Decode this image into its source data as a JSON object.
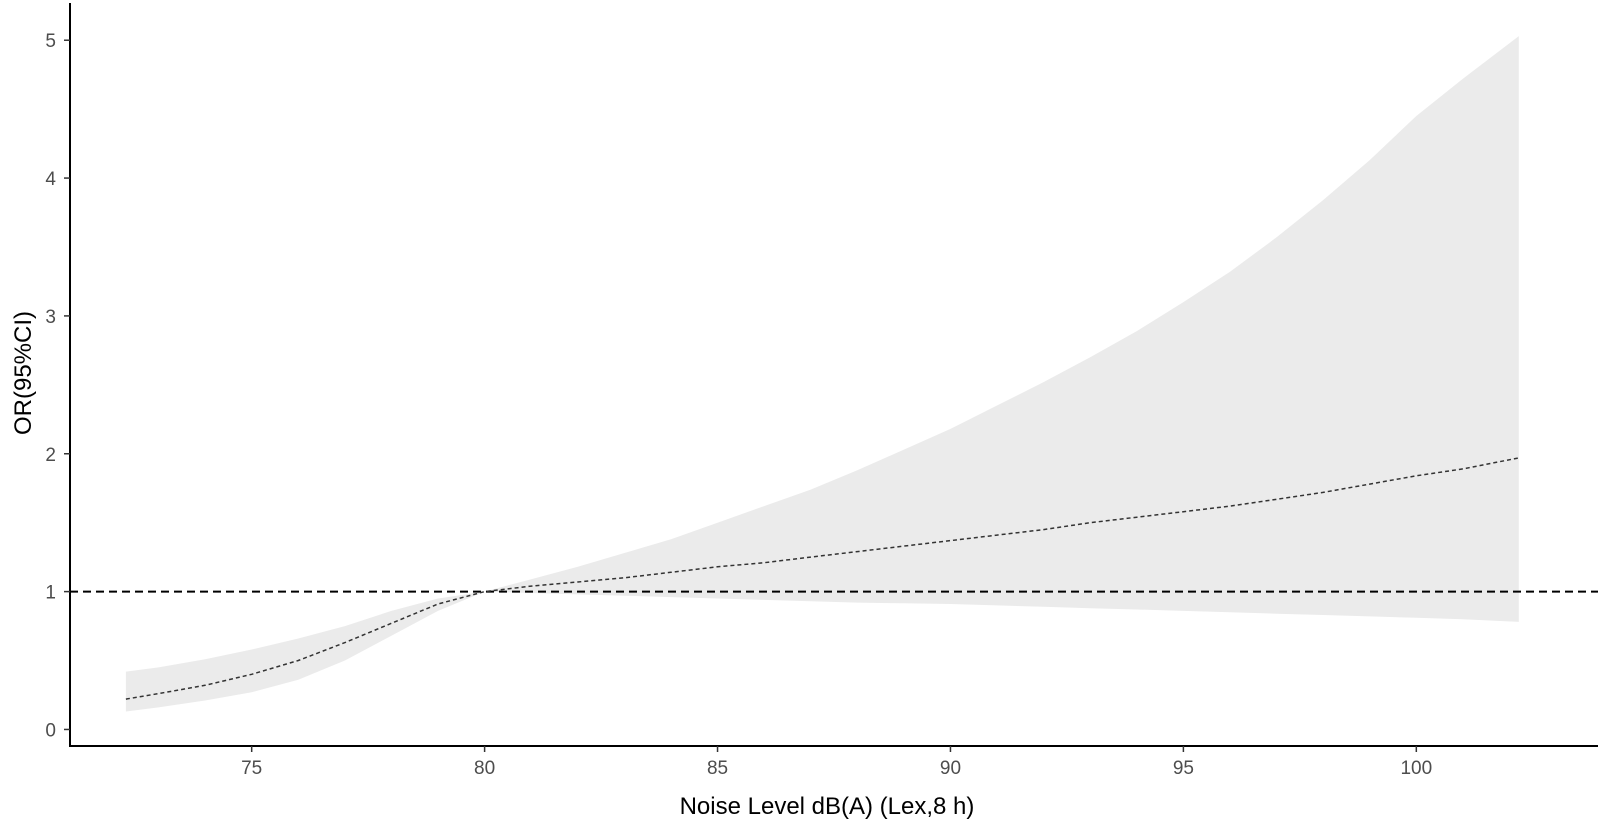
{
  "chart_data": {
    "type": "line",
    "title": "",
    "xlabel": "Noise Level dB(A) (Lex,8 h)",
    "ylabel": "OR(95%CI)",
    "xlim": [
      71.1,
      103.9
    ],
    "ylim": [
      -0.12,
      5.27
    ],
    "xticks": [
      75,
      80,
      85,
      90,
      95,
      100
    ],
    "yticks": [
      0,
      1,
      2,
      3,
      4,
      5
    ],
    "grid": false,
    "reference_line": {
      "y": 1,
      "style": "dashed"
    },
    "series": [
      {
        "x": [
          72.3,
          73,
          74,
          75,
          76,
          77,
          78,
          79,
          80,
          81,
          82,
          83,
          84,
          85,
          86,
          87,
          88,
          89,
          90,
          91,
          92,
          93,
          94,
          95,
          96,
          97,
          98,
          99,
          100,
          101,
          102.2
        ],
        "y": [
          0.22,
          0.26,
          0.32,
          0.4,
          0.5,
          0.63,
          0.77,
          0.91,
          1.0,
          1.04,
          1.07,
          1.1,
          1.14,
          1.18,
          1.21,
          1.25,
          1.29,
          1.33,
          1.37,
          1.41,
          1.45,
          1.5,
          1.54,
          1.58,
          1.62,
          1.67,
          1.72,
          1.78,
          1.84,
          1.89,
          1.97
        ],
        "lower": [
          0.13,
          0.16,
          0.21,
          0.27,
          0.36,
          0.5,
          0.68,
          0.86,
          1.0,
          0.99,
          0.98,
          0.97,
          0.96,
          0.95,
          0.94,
          0.93,
          0.92,
          0.915,
          0.91,
          0.9,
          0.89,
          0.88,
          0.87,
          0.86,
          0.85,
          0.84,
          0.83,
          0.82,
          0.81,
          0.8,
          0.78
        ],
        "upper": [
          0.42,
          0.45,
          0.51,
          0.58,
          0.66,
          0.75,
          0.86,
          0.95,
          1.0,
          1.09,
          1.18,
          1.28,
          1.38,
          1.5,
          1.62,
          1.74,
          1.88,
          2.03,
          2.18,
          2.35,
          2.52,
          2.7,
          2.89,
          3.1,
          3.32,
          3.57,
          3.84,
          4.13,
          4.45,
          4.72,
          5.03
        ]
      }
    ]
  }
}
